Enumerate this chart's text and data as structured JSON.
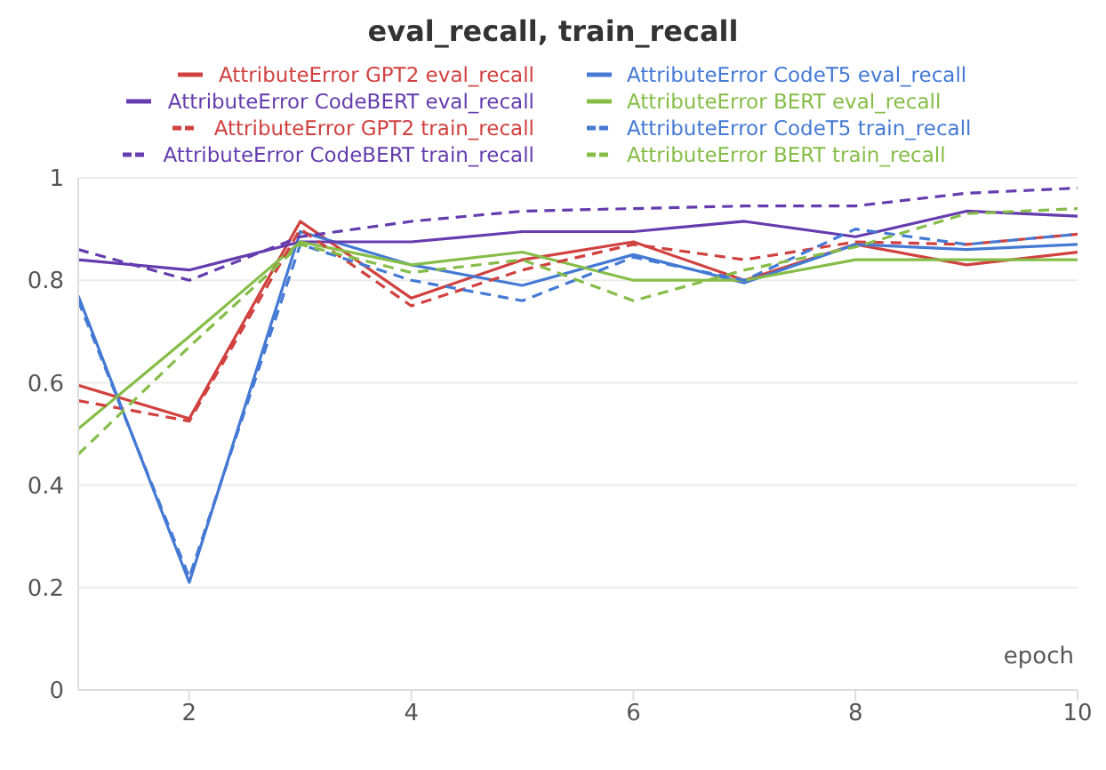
{
  "chart_data": {
    "type": "line",
    "title": "eval_recall, train_recall",
    "xlabel": "epoch",
    "x": [
      1,
      2,
      3,
      4,
      5,
      6,
      7,
      8,
      9,
      10
    ],
    "xlim": [
      1,
      10
    ],
    "xticks": [
      2,
      4,
      6,
      8,
      10
    ],
    "ylim": [
      0,
      1
    ],
    "yticks": [
      0,
      0.2,
      0.4,
      0.6,
      0.8,
      1
    ],
    "grid": "y",
    "legend": "top",
    "marker": "none",
    "series": [
      {
        "name": "AttributeError GPT2 eval_recall",
        "color": "#d0413f",
        "line_style": "solid",
        "values": [
          0.595,
          0.53,
          0.915,
          0.765,
          0.84,
          0.875,
          0.8,
          0.87,
          0.83,
          0.855
        ]
      },
      {
        "name": "AttributeError CodeT5 eval_recall",
        "color": "#4479d4",
        "line_style": "solid",
        "values": [
          0.77,
          0.21,
          0.895,
          0.83,
          0.79,
          0.85,
          0.795,
          0.87,
          0.86,
          0.87
        ]
      },
      {
        "name": "AttributeError CodeBERT eval_recall",
        "color": "#643cae",
        "line_style": "solid",
        "values": [
          0.84,
          0.82,
          0.875,
          0.875,
          0.895,
          0.895,
          0.915,
          0.885,
          0.935,
          0.925
        ]
      },
      {
        "name": "AttributeError BERT eval_recall",
        "color": "#86bd48",
        "line_style": "solid",
        "values": [
          0.51,
          0.69,
          0.875,
          0.83,
          0.855,
          0.8,
          0.8,
          0.84,
          0.84,
          0.84
        ]
      },
      {
        "name": "AttributeError GPT2 train_recall",
        "color": "#d0413f",
        "line_style": "dashed",
        "values": [
          0.565,
          0.525,
          0.9,
          0.75,
          0.82,
          0.87,
          0.84,
          0.875,
          0.87,
          0.89
        ]
      },
      {
        "name": "AttributeError CodeT5 train_recall",
        "color": "#4479d4",
        "line_style": "dashed",
        "values": [
          0.76,
          0.22,
          0.87,
          0.8,
          0.76,
          0.845,
          0.8,
          0.9,
          0.87,
          0.89
        ]
      },
      {
        "name": "AttributeError CodeBERT train_recall",
        "color": "#643cae",
        "line_style": "dashed",
        "values": [
          0.86,
          0.8,
          0.885,
          0.915,
          0.935,
          0.94,
          0.945,
          0.945,
          0.97,
          0.98
        ]
      },
      {
        "name": "AttributeError BERT train_recall",
        "color": "#86bd48",
        "line_style": "dashed",
        "values": [
          0.46,
          0.67,
          0.87,
          0.815,
          0.84,
          0.76,
          0.82,
          0.865,
          0.93,
          0.94
        ]
      }
    ]
  }
}
